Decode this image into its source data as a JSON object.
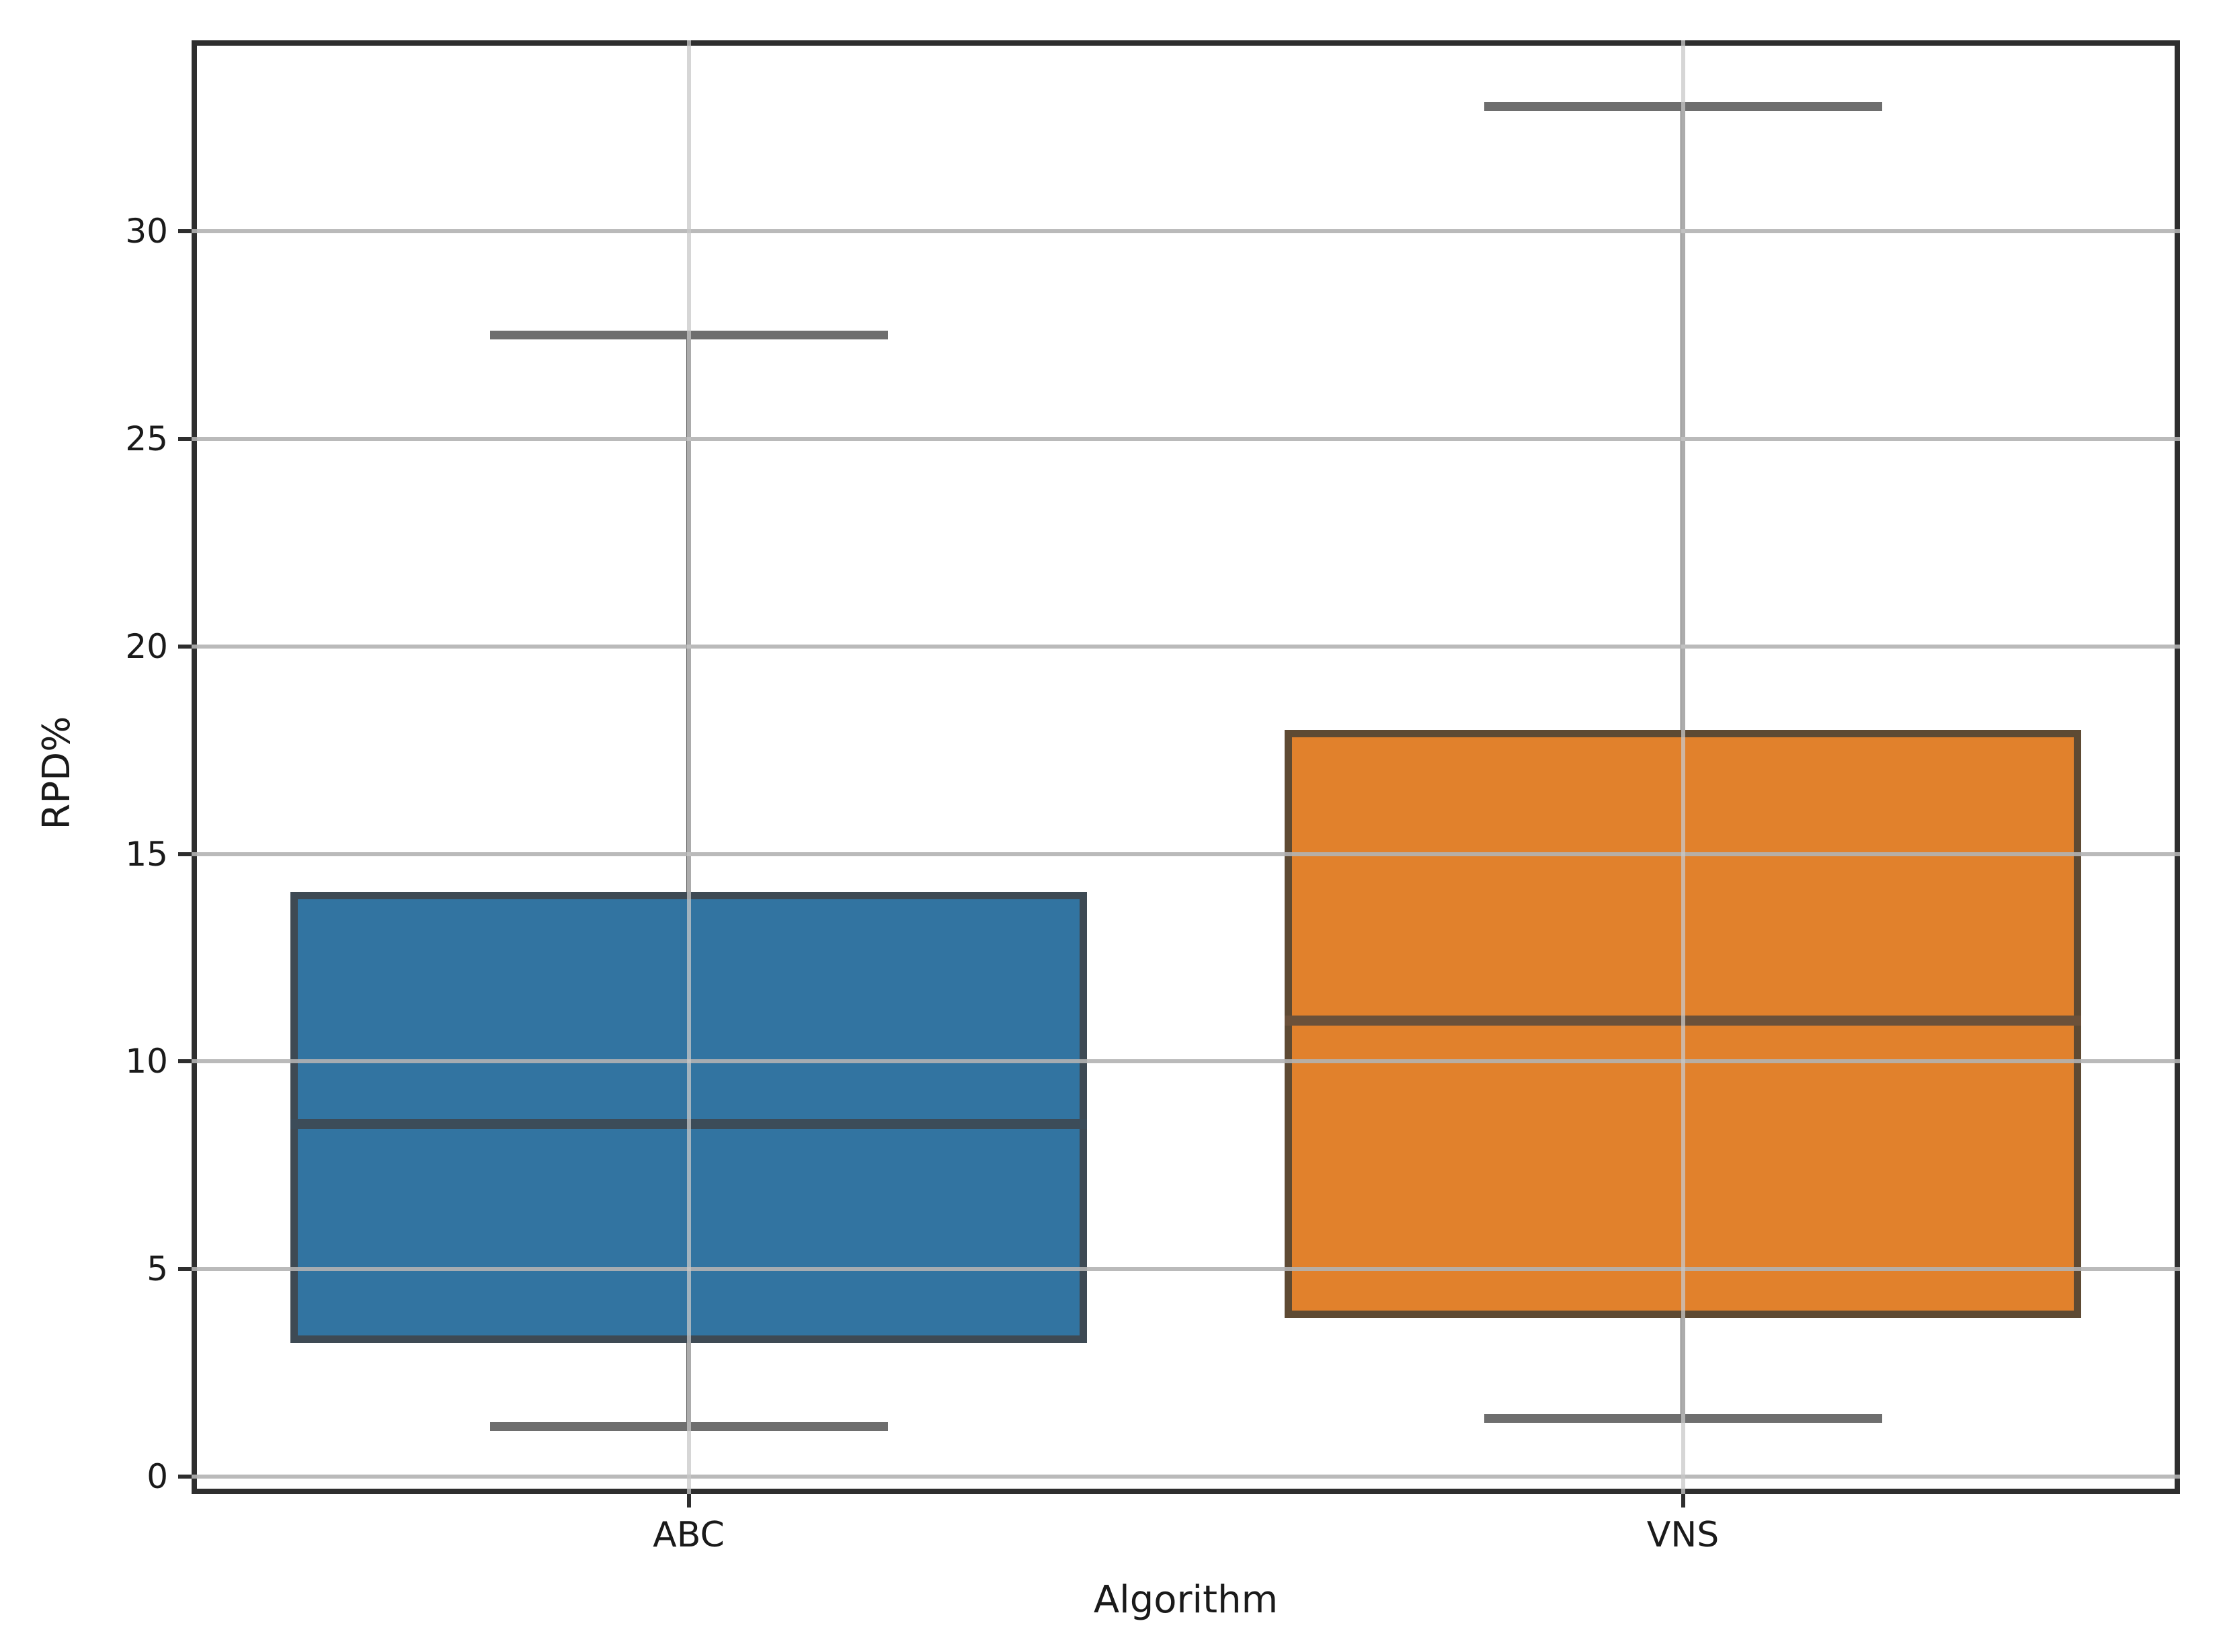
{
  "chart_data": {
    "type": "box",
    "title": "",
    "xlabel": "Algorithm",
    "ylabel": "RPD%",
    "categories": [
      "ABC",
      "VNS"
    ],
    "series": [
      {
        "name": "ABC",
        "min": 1.2,
        "q1": 3.3,
        "median": 8.5,
        "q3": 14.0,
        "max": 27.5,
        "fill_color": "#3274a1",
        "edge_color": "#3e4a54",
        "median_color": "#3c4c59"
      },
      {
        "name": "VNS",
        "min": 1.4,
        "q1": 3.9,
        "median": 11.0,
        "q3": 17.9,
        "max": 33.0,
        "fill_color": "#e1812c",
        "edge_color": "#5e4a33",
        "median_color": "#6b513a"
      }
    ],
    "yticks": [
      0,
      5,
      10,
      15,
      20,
      25,
      30
    ],
    "ylim": [
      -0.42,
      34.6
    ],
    "grid": {
      "horizontal": true,
      "vertical": true,
      "hgrid_color": "#b8b8b8",
      "vgrid_color": "#c8c8c8"
    },
    "whisker_color": "#585858",
    "cap_color": "#6e6e6e",
    "spine_color": "#2e2e2e",
    "background_color": "#ffffff",
    "legend": null
  }
}
